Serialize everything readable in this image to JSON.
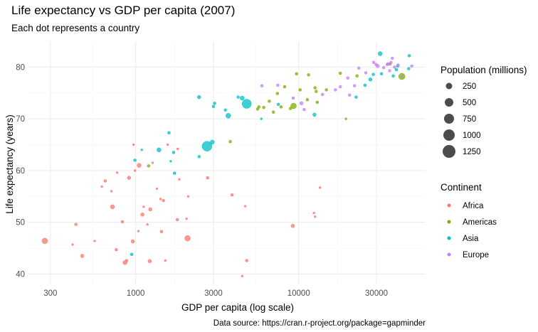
{
  "chart_data": {
    "type": "scatter",
    "title": "Life expectancy vs GDP per capita (2007)",
    "subtitle": "Each dot represents a country",
    "xlabel": "GDP per capita (log scale)",
    "ylabel": "Life expectancy (years)",
    "caption": "Data source: https://cran.r-project.org/package=gapminder",
    "x_scale": "log10",
    "xlim": [
      220,
      60000
    ],
    "ylim": [
      38,
      85
    ],
    "x_ticks": [
      300,
      1000,
      3000,
      10000,
      30000
    ],
    "x_tick_labels": [
      "300",
      "1000",
      "3000",
      "10000",
      "30000"
    ],
    "y_ticks": [
      40,
      50,
      60,
      70,
      80
    ],
    "y_tick_labels": [
      "40",
      "50",
      "60",
      "70",
      "80"
    ],
    "grid": true,
    "size_legend": {
      "title": "Population (millions)",
      "values": [
        250,
        500,
        750,
        1000,
        1250
      ],
      "labels": [
        "250",
        "500",
        "750",
        "1000",
        "1250"
      ]
    },
    "color_legend": {
      "title": "Continent",
      "position": "right",
      "items": [
        {
          "name": "Africa",
          "color": "#F8766D"
        },
        {
          "name": "Americas",
          "color": "#7CAE00"
        },
        {
          "name": "Asia",
          "color": "#00BFC4"
        },
        {
          "name": "Europe",
          "color": "#C77CFF"
        }
      ]
    },
    "series": [
      {
        "name": "Africa",
        "color": "#F8766D",
        "points": [
          [
            277,
            46.4,
            8
          ],
          [
            430,
            49.6,
            4
          ],
          [
            470,
            43.5,
            5
          ],
          [
            410,
            45.7,
            3
          ],
          [
            560,
            46.4,
            3
          ],
          [
            620,
            56.9,
            3
          ],
          [
            650,
            58.0,
            4
          ],
          [
            710,
            56.0,
            3
          ],
          [
            720,
            53.0,
            6
          ],
          [
            760,
            44.7,
            4
          ],
          [
            770,
            59.6,
            3
          ],
          [
            830,
            50.1,
            4
          ],
          [
            860,
            42.2,
            6
          ],
          [
            880,
            42.6,
            4
          ],
          [
            910,
            58.6,
            5
          ],
          [
            960,
            46.3,
            5
          ],
          [
            970,
            65.0,
            3
          ],
          [
            990,
            60.0,
            3
          ],
          [
            1040,
            48.3,
            3
          ],
          [
            1050,
            61.0,
            6
          ],
          [
            1100,
            51.5,
            5
          ],
          [
            1120,
            53.0,
            3
          ],
          [
            1180,
            49.6,
            3
          ],
          [
            1220,
            42.5,
            5
          ],
          [
            1230,
            52.5,
            5
          ],
          [
            1270,
            61.5,
            3
          ],
          [
            1350,
            56.5,
            3
          ],
          [
            1420,
            54.5,
            3
          ],
          [
            1440,
            48.2,
            4
          ],
          [
            1480,
            54.2,
            4
          ],
          [
            1520,
            42.6,
            3
          ],
          [
            1570,
            65.0,
            3
          ],
          [
            1800,
            50.5,
            4
          ],
          [
            1810,
            64.2,
            3
          ],
          [
            1850,
            58.3,
            3
          ],
          [
            2050,
            50.7,
            3
          ],
          [
            2080,
            46.9,
            8
          ],
          [
            2100,
            55.0,
            3
          ],
          [
            2760,
            58.6,
            4
          ],
          [
            3900,
            55.3,
            4
          ],
          [
            4700,
            53.1,
            3
          ],
          [
            4800,
            42.6,
            4
          ],
          [
            4500,
            39.6,
            3
          ],
          [
            9200,
            49.3,
            5
          ],
          [
            12400,
            51.8,
            3
          ],
          [
            12600,
            51.1,
            3
          ],
          [
            13500,
            56.7,
            3
          ]
        ]
      },
      {
        "name": "Americas",
        "color": "#7CAE00",
        "points": [
          [
            1200,
            60.9,
            4
          ],
          [
            3800,
            65.6,
            4
          ],
          [
            5600,
            71.9,
            4
          ],
          [
            5700,
            72.3,
            4
          ],
          [
            6100,
            72.2,
            4
          ],
          [
            6600,
            73.4,
            4
          ],
          [
            7000,
            71.3,
            4
          ],
          [
            7400,
            74.9,
            4
          ],
          [
            7800,
            72.3,
            4
          ],
          [
            8200,
            76.2,
            4
          ],
          [
            8900,
            72.0,
            4
          ],
          [
            9300,
            72.5,
            8
          ],
          [
            9700,
            78.7,
            4
          ],
          [
            10200,
            75.6,
            4
          ],
          [
            11300,
            73.7,
            4
          ],
          [
            11500,
            78.5,
            4
          ],
          [
            12600,
            76.0,
            4
          ],
          [
            12800,
            75.3,
            4
          ],
          [
            13000,
            73.2,
            4
          ],
          [
            14800,
            75.6,
            4
          ],
          [
            18000,
            78.8,
            4
          ],
          [
            19500,
            70.0,
            3
          ],
          [
            22800,
            78.3,
            4
          ],
          [
            36300,
            80.6,
            4
          ],
          [
            42950,
            78.2,
            9
          ]
        ]
      },
      {
        "name": "Asia",
        "color": "#00BFC4",
        "points": [
          [
            945,
            43.8,
            4
          ],
          [
            990,
            62.0,
            4
          ],
          [
            1090,
            64.0,
            3
          ],
          [
            1390,
            64.0,
            6
          ],
          [
            1600,
            67.3,
            4
          ],
          [
            1640,
            61.8,
            3
          ],
          [
            1710,
            63.5,
            4
          ],
          [
            1730,
            59.5,
            4
          ],
          [
            2450,
            62.7,
            4
          ],
          [
            2740,
            64.7,
            14
          ],
          [
            2950,
            65.5,
            6
          ],
          [
            2450,
            74.2,
            5
          ],
          [
            3000,
            72.4,
            4
          ],
          [
            3050,
            73.0,
            4
          ],
          [
            3550,
            71.7,
            4
          ],
          [
            3700,
            70.6,
            7
          ],
          [
            4250,
            74.2,
            4
          ],
          [
            4500,
            74.0,
            6
          ],
          [
            4800,
            72.9,
            13
          ],
          [
            5900,
            70.0,
            3
          ],
          [
            7500,
            72.8,
            4
          ],
          [
            12500,
            70.8,
            5
          ],
          [
            22500,
            74.2,
            4
          ],
          [
            25500,
            76.5,
            4
          ],
          [
            27500,
            77.6,
            5
          ],
          [
            28700,
            78.6,
            4
          ],
          [
            31600,
            82.6,
            6
          ],
          [
            32200,
            78.7,
            4
          ],
          [
            38000,
            78.3,
            4
          ],
          [
            39700,
            79.5,
            4
          ],
          [
            40500,
            80.2,
            4
          ],
          [
            47300,
            79.7,
            4
          ],
          [
            47600,
            82.2,
            4
          ]
        ]
      },
      {
        "name": "Europe",
        "color": "#C77CFF",
        "points": [
          [
            5950,
            76.4,
            4
          ],
          [
            7450,
            76.5,
            4
          ],
          [
            9250,
            74.0,
            4
          ],
          [
            10400,
            73.0,
            5
          ],
          [
            10800,
            71.8,
            4
          ],
          [
            14000,
            74.7,
            4
          ],
          [
            16800,
            75.6,
            4
          ],
          [
            18000,
            76.2,
            4
          ],
          [
            20000,
            77.9,
            4
          ],
          [
            20500,
            74.6,
            4
          ],
          [
            22000,
            76.4,
            4
          ],
          [
            28800,
            80.9,
            4
          ],
          [
            29800,
            80.5,
            4
          ],
          [
            30500,
            80.2,
            5
          ],
          [
            33200,
            79.9,
            4
          ],
          [
            34900,
            80.5,
            4
          ],
          [
            35300,
            80.6,
            4
          ],
          [
            36100,
            79.3,
            4
          ],
          [
            36800,
            80.9,
            4
          ],
          [
            37500,
            81.7,
            4
          ],
          [
            38700,
            80.0,
            4
          ],
          [
            40700,
            80.4,
            4
          ],
          [
            49350,
            80.2,
            4
          ],
          [
            42900,
            78.2,
            3
          ],
          [
            23400,
            79.8,
            4
          ],
          [
            25800,
            78.9,
            4
          ]
        ]
      }
    ]
  }
}
